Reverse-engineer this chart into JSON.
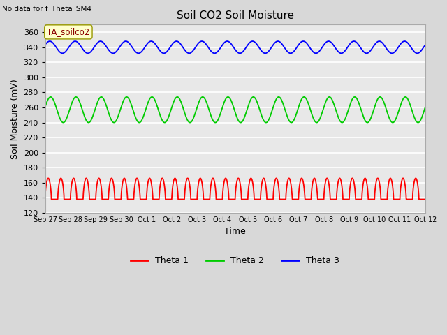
{
  "title": "Soil CO2 Soil Moisture",
  "no_data_text": "No data for f_Theta_SM4",
  "ylabel": "Soil Moisture (mV)",
  "xlabel": "Time",
  "annotation_box": "TA_soilco2",
  "ylim": [
    120,
    370
  ],
  "yticks": [
    120,
    140,
    160,
    180,
    200,
    220,
    240,
    260,
    280,
    300,
    320,
    340,
    360
  ],
  "x_tick_labels": [
    "Sep 27",
    "Sep 28",
    "Sep 29",
    "Sep 30",
    "Oct 1",
    "Oct 2",
    "Oct 3",
    "Oct 4",
    "Oct 5",
    "Oct 6",
    "Oct 7",
    "Oct 8",
    "Oct 9",
    "Oct 10",
    "Oct 11",
    "Oct 12"
  ],
  "theta1_base": 138,
  "theta1_amp": 28,
  "theta1_period": 0.5,
  "theta2_base": 257,
  "theta2_amp": 17,
  "theta2_period": 1.0,
  "theta3_base": 340,
  "theta3_amp": 8,
  "theta3_period": 1.0,
  "n_days": 15,
  "fig_bg_color": "#d8d8d8",
  "plot_bg_color": "#e8e8e8",
  "grid_color": "white",
  "theta1_color": "red",
  "theta2_color": "#00cc00",
  "theta3_color": "blue",
  "legend_labels": [
    "Theta 1",
    "Theta 2",
    "Theta 3"
  ],
  "legend_colors": [
    "red",
    "#00cc00",
    "blue"
  ]
}
